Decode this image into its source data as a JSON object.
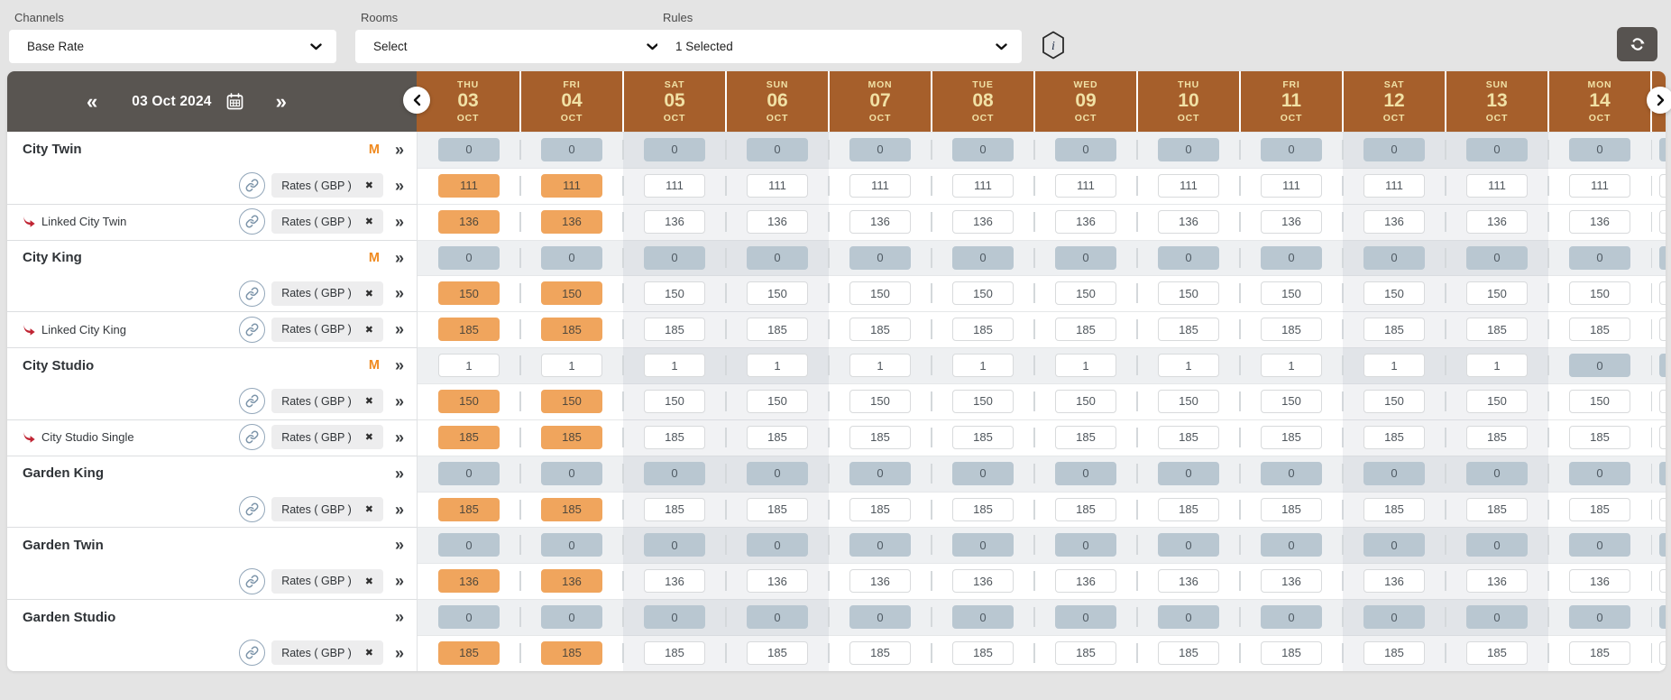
{
  "filters": [
    {
      "id": "channels",
      "label": "Channels",
      "value": "Base Rate"
    },
    {
      "id": "rooms",
      "label": "Rooms",
      "value": "Select"
    },
    {
      "id": "rules",
      "label": "Rules",
      "value": "1 Selected"
    }
  ],
  "header": {
    "date_label": "03 Oct 2024",
    "prev_icon": "«",
    "next_icon": "»"
  },
  "icons": {
    "expand": "»",
    "remove": "✖",
    "info": "i"
  },
  "columns": [
    {
      "dow": "THU",
      "day": "03",
      "month": "OCT",
      "weekend": false
    },
    {
      "dow": "FRI",
      "day": "04",
      "month": "OCT",
      "weekend": false
    },
    {
      "dow": "SAT",
      "day": "05",
      "month": "OCT",
      "weekend": true
    },
    {
      "dow": "SUN",
      "day": "06",
      "month": "OCT",
      "weekend": true
    },
    {
      "dow": "MON",
      "day": "07",
      "month": "OCT",
      "weekend": false
    },
    {
      "dow": "TUE",
      "day": "08",
      "month": "OCT",
      "weekend": false
    },
    {
      "dow": "WED",
      "day": "09",
      "month": "OCT",
      "weekend": false
    },
    {
      "dow": "THU",
      "day": "10",
      "month": "OCT",
      "weekend": false
    },
    {
      "dow": "FRI",
      "day": "11",
      "month": "OCT",
      "weekend": false
    },
    {
      "dow": "SAT",
      "day": "12",
      "month": "OCT",
      "weekend": true
    },
    {
      "dow": "SUN",
      "day": "13",
      "month": "OCT",
      "weekend": true
    },
    {
      "dow": "MON",
      "day": "14",
      "month": "OCT",
      "weekend": false
    }
  ],
  "rates_chip_label": "Rates ( GBP )",
  "rows": [
    {
      "kind": "avail",
      "room": "City Twin",
      "badge": "M",
      "divider": false,
      "values": [
        "0",
        "0",
        "0",
        "0",
        "0",
        "0",
        "0",
        "0",
        "0",
        "0",
        "0",
        "0"
      ]
    },
    {
      "kind": "rates",
      "divider": false,
      "highlight_first": 2,
      "values": [
        "111",
        "111",
        "111",
        "111",
        "111",
        "111",
        "111",
        "111",
        "111",
        "111",
        "111",
        "111"
      ]
    },
    {
      "kind": "linked",
      "room": "Linked City Twin",
      "divider": true,
      "highlight_first": 2,
      "values": [
        "136",
        "136",
        "136",
        "136",
        "136",
        "136",
        "136",
        "136",
        "136",
        "136",
        "136",
        "136"
      ]
    },
    {
      "kind": "avail",
      "room": "City King",
      "badge": "M",
      "divider": true,
      "values": [
        "0",
        "0",
        "0",
        "0",
        "0",
        "0",
        "0",
        "0",
        "0",
        "0",
        "0",
        "0"
      ]
    },
    {
      "kind": "rates",
      "divider": false,
      "highlight_first": 2,
      "values": [
        "150",
        "150",
        "150",
        "150",
        "150",
        "150",
        "150",
        "150",
        "150",
        "150",
        "150",
        "150"
      ]
    },
    {
      "kind": "linked",
      "room": "Linked City King",
      "divider": true,
      "highlight_first": 2,
      "values": [
        "185",
        "185",
        "185",
        "185",
        "185",
        "185",
        "185",
        "185",
        "185",
        "185",
        "185",
        "185"
      ]
    },
    {
      "kind": "avail",
      "room": "City Studio",
      "badge": "M",
      "divider": true,
      "values": [
        "1",
        "1",
        "1",
        "1",
        "1",
        "1",
        "1",
        "1",
        "1",
        "1",
        "1",
        "0"
      ]
    },
    {
      "kind": "rates",
      "divider": false,
      "highlight_first": 2,
      "values": [
        "150",
        "150",
        "150",
        "150",
        "150",
        "150",
        "150",
        "150",
        "150",
        "150",
        "150",
        "150"
      ]
    },
    {
      "kind": "linked",
      "room": "City Studio Single",
      "divider": true,
      "highlight_first": 2,
      "values": [
        "185",
        "185",
        "185",
        "185",
        "185",
        "185",
        "185",
        "185",
        "185",
        "185",
        "185",
        "185"
      ]
    },
    {
      "kind": "avail",
      "room": "Garden King",
      "badge": null,
      "divider": true,
      "values": [
        "0",
        "0",
        "0",
        "0",
        "0",
        "0",
        "0",
        "0",
        "0",
        "0",
        "0",
        "0"
      ]
    },
    {
      "kind": "rates",
      "divider": false,
      "highlight_first": 2,
      "values": [
        "185",
        "185",
        "185",
        "185",
        "185",
        "185",
        "185",
        "185",
        "185",
        "185",
        "185",
        "185"
      ]
    },
    {
      "kind": "avail",
      "room": "Garden Twin",
      "badge": null,
      "divider": true,
      "values": [
        "0",
        "0",
        "0",
        "0",
        "0",
        "0",
        "0",
        "0",
        "0",
        "0",
        "0",
        "0"
      ]
    },
    {
      "kind": "rates",
      "divider": false,
      "highlight_first": 2,
      "values": [
        "136",
        "136",
        "136",
        "136",
        "136",
        "136",
        "136",
        "136",
        "136",
        "136",
        "136",
        "136"
      ]
    },
    {
      "kind": "avail",
      "room": "Garden Studio",
      "badge": null,
      "divider": true,
      "values": [
        "0",
        "0",
        "0",
        "0",
        "0",
        "0",
        "0",
        "0",
        "0",
        "0",
        "0",
        "0"
      ]
    },
    {
      "kind": "rates",
      "divider": false,
      "highlight_first": 2,
      "values": [
        "185",
        "185",
        "185",
        "185",
        "185",
        "185",
        "185",
        "185",
        "185",
        "185",
        "185",
        "185"
      ]
    }
  ],
  "colors": {
    "header_brown": "#a65f2b",
    "header_text": "#f1e1a5",
    "dark_bar": "#595551",
    "cell_orange": "#f0a55d",
    "cell_muted": "#b9c7d1",
    "badge_orange": "#f08a1f",
    "linked_red": "#c02433",
    "link_icon": "#7d95aa"
  }
}
